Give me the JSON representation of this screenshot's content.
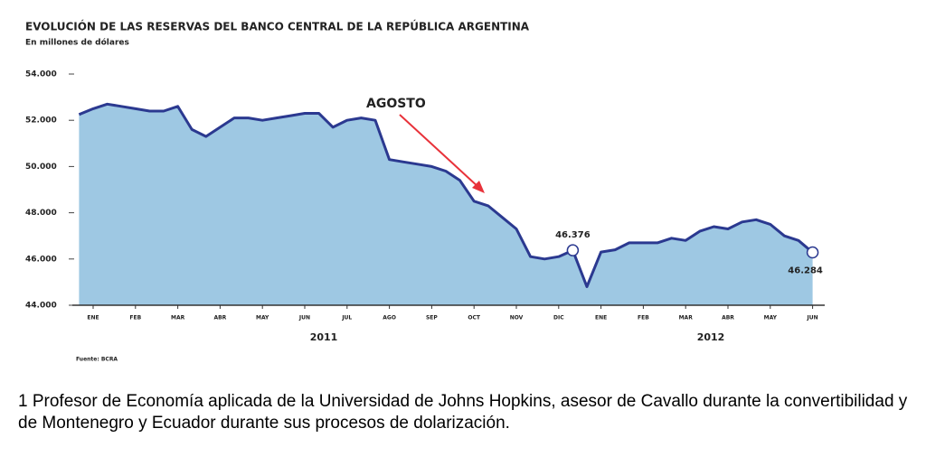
{
  "chart_data": {
    "type": "area",
    "title": "EVOLUCIÓN DE LAS RESERVAS DEL BANCO CENTRAL DE LA REPÚBLICA ARGENTINA",
    "subtitle": "En millones de dólares",
    "source": "Fuente: BCRA",
    "annotation": "AGOSTO",
    "years": [
      "2011",
      "2012"
    ],
    "categories": [
      null,
      "ENE",
      null,
      null,
      "FEB",
      null,
      null,
      "MAR",
      null,
      null,
      "ABR",
      null,
      null,
      "MAY",
      null,
      null,
      "JUN",
      null,
      null,
      "JUL",
      null,
      null,
      "AGO",
      null,
      null,
      "SEP",
      null,
      null,
      "OCT",
      null,
      null,
      "NOV",
      null,
      null,
      "DIC",
      null,
      null,
      "ENE",
      null,
      null,
      "FEB",
      null,
      null,
      "MAR",
      null,
      null,
      "ABR",
      null,
      null,
      "MAY",
      null,
      null,
      "JUN"
    ],
    "values": [
      52250,
      52500,
      52700,
      52600,
      52500,
      52400,
      52400,
      52600,
      51600,
      51300,
      51700,
      52100,
      52100,
      52000,
      52100,
      52200,
      52300,
      52300,
      51700,
      52000,
      52100,
      52000,
      50300,
      50200,
      50100,
      50000,
      49800,
      49400,
      48500,
      48300,
      47800,
      47300,
      46100,
      46000,
      46100,
      46376,
      44800,
      46300,
      46400,
      46700,
      46700,
      46700,
      46900,
      46800,
      47200,
      47400,
      47300,
      47600,
      47700,
      47500,
      47000,
      46800,
      46284
    ],
    "value_labels": [
      null,
      null,
      null,
      null,
      null,
      null,
      null,
      null,
      null,
      null,
      null,
      null,
      null,
      null,
      null,
      null,
      null,
      null,
      null,
      null,
      null,
      null,
      null,
      null,
      null,
      null,
      null,
      null,
      null,
      null,
      null,
      null,
      null,
      null,
      null,
      "46.376",
      null,
      null,
      null,
      null,
      null,
      null,
      null,
      null,
      null,
      null,
      null,
      null,
      null,
      null,
      null,
      null,
      "46.284"
    ],
    "color": "#2b3990",
    "fill": "#9ec8e3",
    "ylim": [
      44000,
      54000
    ],
    "yticks": [
      {
        "value": 44000,
        "label": "44.000"
      },
      {
        "value": 46000,
        "label": "46.000"
      },
      {
        "value": 48000,
        "label": "48.000"
      },
      {
        "value": 50000,
        "label": "50.000"
      },
      {
        "value": 52000,
        "label": "52.000"
      },
      {
        "value": 54000,
        "label": "54.000"
      }
    ]
  },
  "footnote": "1 Profesor de Economía aplicada de la Universidad de Johns Hopkins, asesor de Cavallo durante la convertibilidad y de Montenegro y Ecuador durante sus procesos de dolarización."
}
